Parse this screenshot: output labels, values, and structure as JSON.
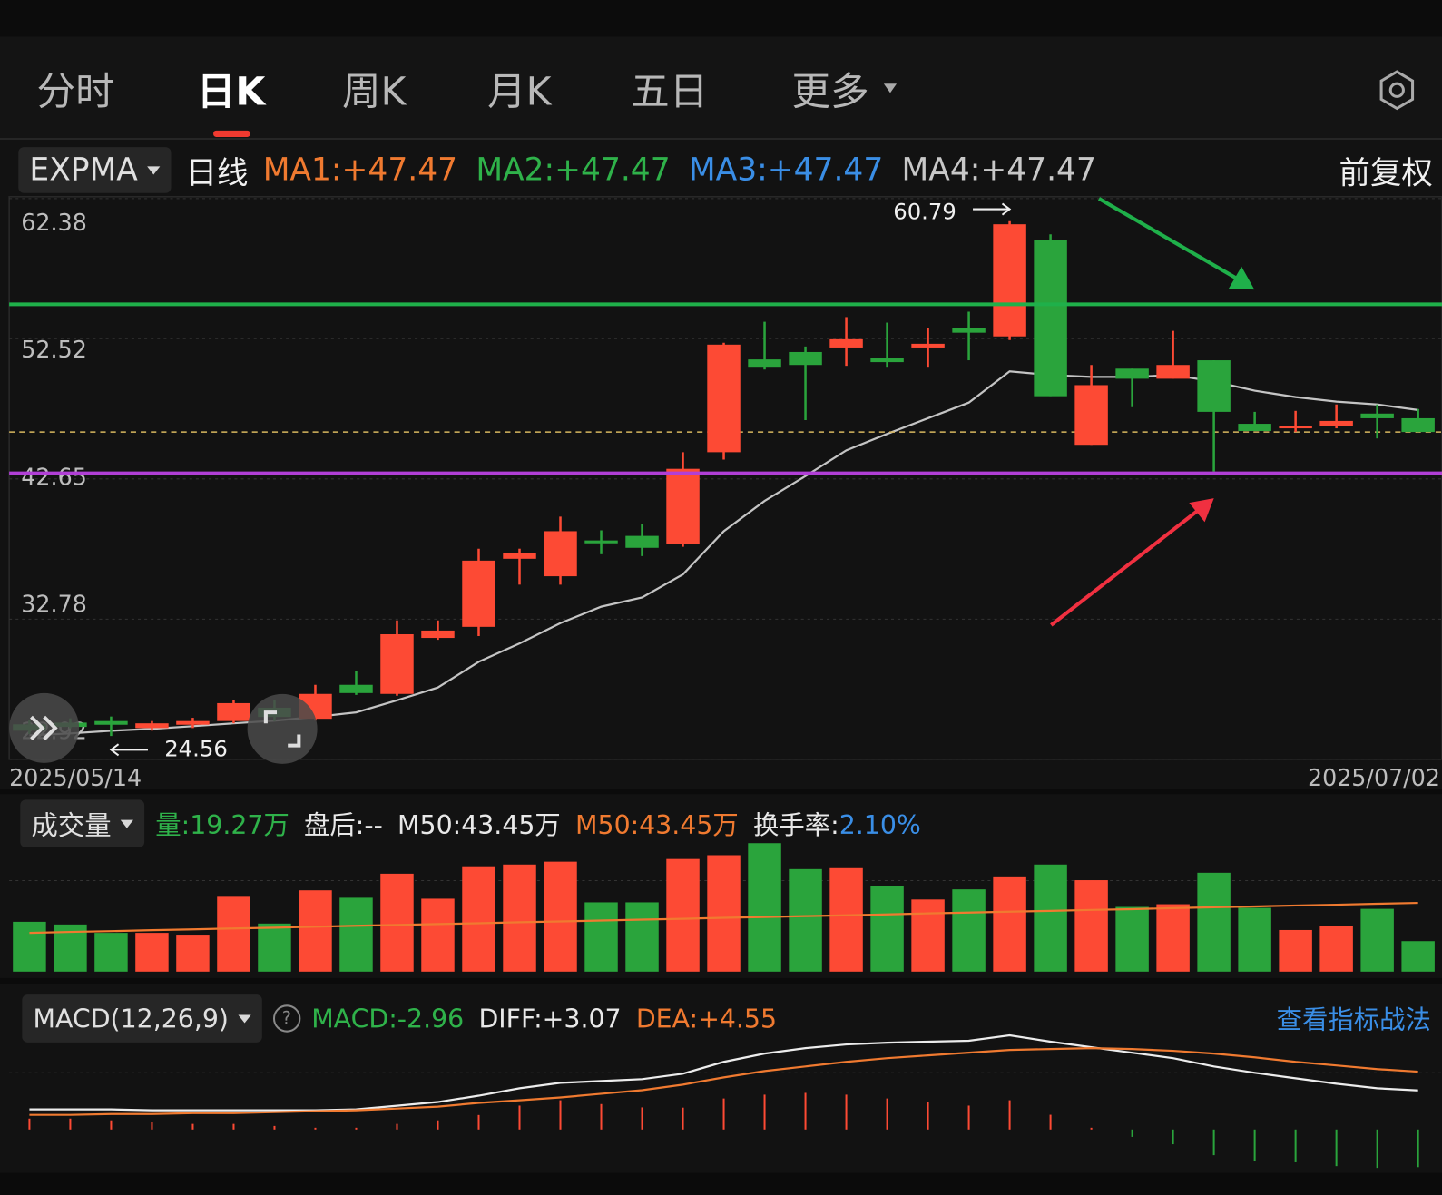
{
  "tabs": [
    "分时",
    "日K",
    "周K",
    "月K",
    "五日",
    "更多"
  ],
  "indicator_bar": {
    "selector": "EXPMA",
    "period": "日线",
    "items": [
      {
        "text": "MA1:+47.47",
        "color": "#f07a30"
      },
      {
        "text": "MA2:+47.47",
        "color": "#2fb24a"
      },
      {
        "text": "MA3:+47.47",
        "color": "#3a8ee6"
      },
      {
        "text": "MA4:+47.47",
        "color": "#c8c8c8"
      }
    ],
    "adjust": "前复权"
  },
  "volume_bar": {
    "selector": "成交量",
    "items": [
      {
        "text": "量:19.27万",
        "color": "#2fb24a"
      },
      {
        "text": "盘后:--",
        "color": "#e8e8e8"
      },
      {
        "text": "M50:43.45万",
        "color": "#e8e8e8"
      },
      {
        "text": "M50:43.45万",
        "color": "#f07a30"
      },
      {
        "text": "换手率:",
        "color": "#e8e8e8",
        "value": "2.10%",
        "value_color": "#3a8ee6"
      }
    ]
  },
  "macd_bar": {
    "selector": "MACD(12,26,9)",
    "help_icon": "?",
    "items": [
      {
        "text": "MACD:-2.96",
        "color": "#2fb24a"
      },
      {
        "text": "DIFF:+3.07",
        "color": "#e8e8e8"
      },
      {
        "text": "DEA:+4.55",
        "color": "#f07a30"
      }
    ],
    "link": "查看指标战法"
  },
  "chart_data": [
    {
      "type": "candlestick",
      "x": [
        "2025/05/14",
        null,
        null,
        null,
        null,
        null,
        null,
        null,
        null,
        null,
        null,
        null,
        null,
        null,
        null,
        null,
        null,
        null,
        null,
        null,
        null,
        null,
        null,
        null,
        null,
        null,
        null,
        null,
        null,
        null,
        null,
        null,
        null,
        null,
        "2025/07/02"
      ],
      "open": [
        25.38,
        25.5,
        25.61,
        25.12,
        25.35,
        25.61,
        26.55,
        25.77,
        28.16,
        27.52,
        31.46,
        32.24,
        37.03,
        35.8,
        38.32,
        38.64,
        38.06,
        44.53,
        51.06,
        51.58,
        51.9,
        51.13,
        51.9,
        53.26,
        52.68,
        59.47,
        45.05,
        50.41,
        49.7,
        51.0,
        46.53,
        46.21,
        46.4,
        47.25,
        46.92
      ],
      "high": [
        25.71,
        25.8,
        25.93,
        25.61,
        25.84,
        27.07,
        27.07,
        28.16,
        29.13,
        32.69,
        32.69,
        37.74,
        37.74,
        40.0,
        39.03,
        39.48,
        44.53,
        52.23,
        53.71,
        51.97,
        54.04,
        53.65,
        53.26,
        54.42,
        60.79,
        59.86,
        50.67,
        50.41,
        53.07,
        51.0,
        47.37,
        47.44,
        47.89,
        47.89,
        47.57
      ],
      "low": [
        24.7,
        25.1,
        24.56,
        24.93,
        25.12,
        25.45,
        25.61,
        25.64,
        27.45,
        27.39,
        31.33,
        31.59,
        35.21,
        35.21,
        37.35,
        37.22,
        37.87,
        44.01,
        50.35,
        46.79,
        50.61,
        50.48,
        50.48,
        51.0,
        52.42,
        48.47,
        45.05,
        47.7,
        49.7,
        43.17,
        46.02,
        45.95,
        46.21,
        45.5,
        45.95
      ],
      "close": [
        24.93,
        25.2,
        25.35,
        25.45,
        25.61,
        26.87,
        25.9,
        27.52,
        27.58,
        31.72,
        31.98,
        36.9,
        37.41,
        38.97,
        38.12,
        37.8,
        43.36,
        52.1,
        50.48,
        50.67,
        52.48,
        50.87,
        52.16,
        52.94,
        60.57,
        48.47,
        49.25,
        49.7,
        50.67,
        47.37,
        46.02,
        46.4,
        46.73,
        46.92,
        45.95
      ],
      "up_color": "#fd4a34",
      "down_color": "#2aa43c",
      "series": [
        {
          "values": [
            24.61,
            24.74,
            24.93,
            25.06,
            25.25,
            25.45,
            25.64,
            25.9,
            26.22,
            27.07,
            27.97,
            29.78,
            31.07,
            32.5,
            33.66,
            34.31,
            35.93,
            38.97,
            41.1,
            42.85,
            44.66,
            45.82,
            46.92,
            48.02,
            50.22,
            49.96,
            49.83,
            49.83,
            49.96,
            49.51,
            48.86,
            48.41,
            48.09,
            47.89,
            47.5
          ],
          "color": "#c4c4c4"
        }
      ],
      "reference_lines": [
        {
          "value": 54.94,
          "color": "#1fb04a"
        },
        {
          "value": 43.04,
          "color": "#b13fd6"
        }
      ],
      "last_price_color": "#d8b860",
      "ylim": [
        22.92,
        62.38
      ],
      "yticks": [
        62.38,
        52.52,
        42.65,
        32.78,
        22.92
      ],
      "grid": true
    },
    {
      "type": "bar",
      "values": [
        31.5,
        29.8,
        24.5,
        24.5,
        22.8,
        47.3,
        30.4,
        51.4,
        46.7,
        61.9,
        46.1,
        66.6,
        67.7,
        69.5,
        43.8,
        43.8,
        71.2,
        73.6,
        81.2,
        64.8,
        65.4,
        54.3,
        45.6,
        52.0,
        60.2,
        67.7,
        57.8,
        40.9,
        42.6,
        62.5,
        40.3,
        26.3,
        28.6,
        39.7,
        19.27
      ],
      "series": [
        {
          "values": [
            24.5,
            25.1,
            25.6,
            26.2,
            26.7,
            27.3,
            27.8,
            28.4,
            29.0,
            29.5,
            30.1,
            30.6,
            31.2,
            31.7,
            32.3,
            32.9,
            33.4,
            34.0,
            34.5,
            35.1,
            35.6,
            36.2,
            36.8,
            37.3,
            37.9,
            38.4,
            39.0,
            39.5,
            40.1,
            40.7,
            41.2,
            41.8,
            42.3,
            42.9,
            43.45
          ],
          "color": "#f07a30"
        }
      ],
      "ylim": [
        0,
        82.5
      ]
    },
    {
      "type": "macd",
      "histogram": [
        0.86,
        0.86,
        0.72,
        0.58,
        0.44,
        0.44,
        0.28,
        0.14,
        0.14,
        0.44,
        0.72,
        1.14,
        1.88,
        2.3,
        2.0,
        1.74,
        1.72,
        2.44,
        2.74,
        2.88,
        2.74,
        2.44,
        2.16,
        1.88,
        2.3,
        1.16,
        0.14,
        -0.58,
        -1.16,
        -2.02,
        -2.44,
        -2.58,
        -2.88,
        -3.02,
        -2.96
      ],
      "series": [
        {
          "values": [
            1.58,
            1.58,
            1.58,
            1.51,
            1.51,
            1.51,
            1.51,
            1.51,
            1.58,
            1.87,
            2.16,
            2.66,
            3.24,
            3.67,
            3.81,
            3.96,
            4.39,
            5.32,
            5.97,
            6.4,
            6.69,
            6.83,
            6.91,
            6.98,
            7.41,
            6.91,
            6.47,
            6.04,
            5.61,
            4.96,
            4.46,
            4.03,
            3.6,
            3.24,
            3.07
          ],
          "color": "#ececec"
        },
        {
          "values": [
            1.15,
            1.15,
            1.22,
            1.22,
            1.29,
            1.29,
            1.37,
            1.44,
            1.51,
            1.65,
            1.8,
            2.09,
            2.3,
            2.52,
            2.81,
            3.09,
            3.53,
            4.1,
            4.6,
            4.96,
            5.32,
            5.61,
            5.83,
            6.04,
            6.26,
            6.33,
            6.4,
            6.33,
            6.19,
            5.97,
            5.68,
            5.32,
            5.04,
            4.75,
            4.55
          ],
          "color": "#f07a30"
        }
      ],
      "ylim": [
        -3.2,
        7.5
      ]
    }
  ]
}
